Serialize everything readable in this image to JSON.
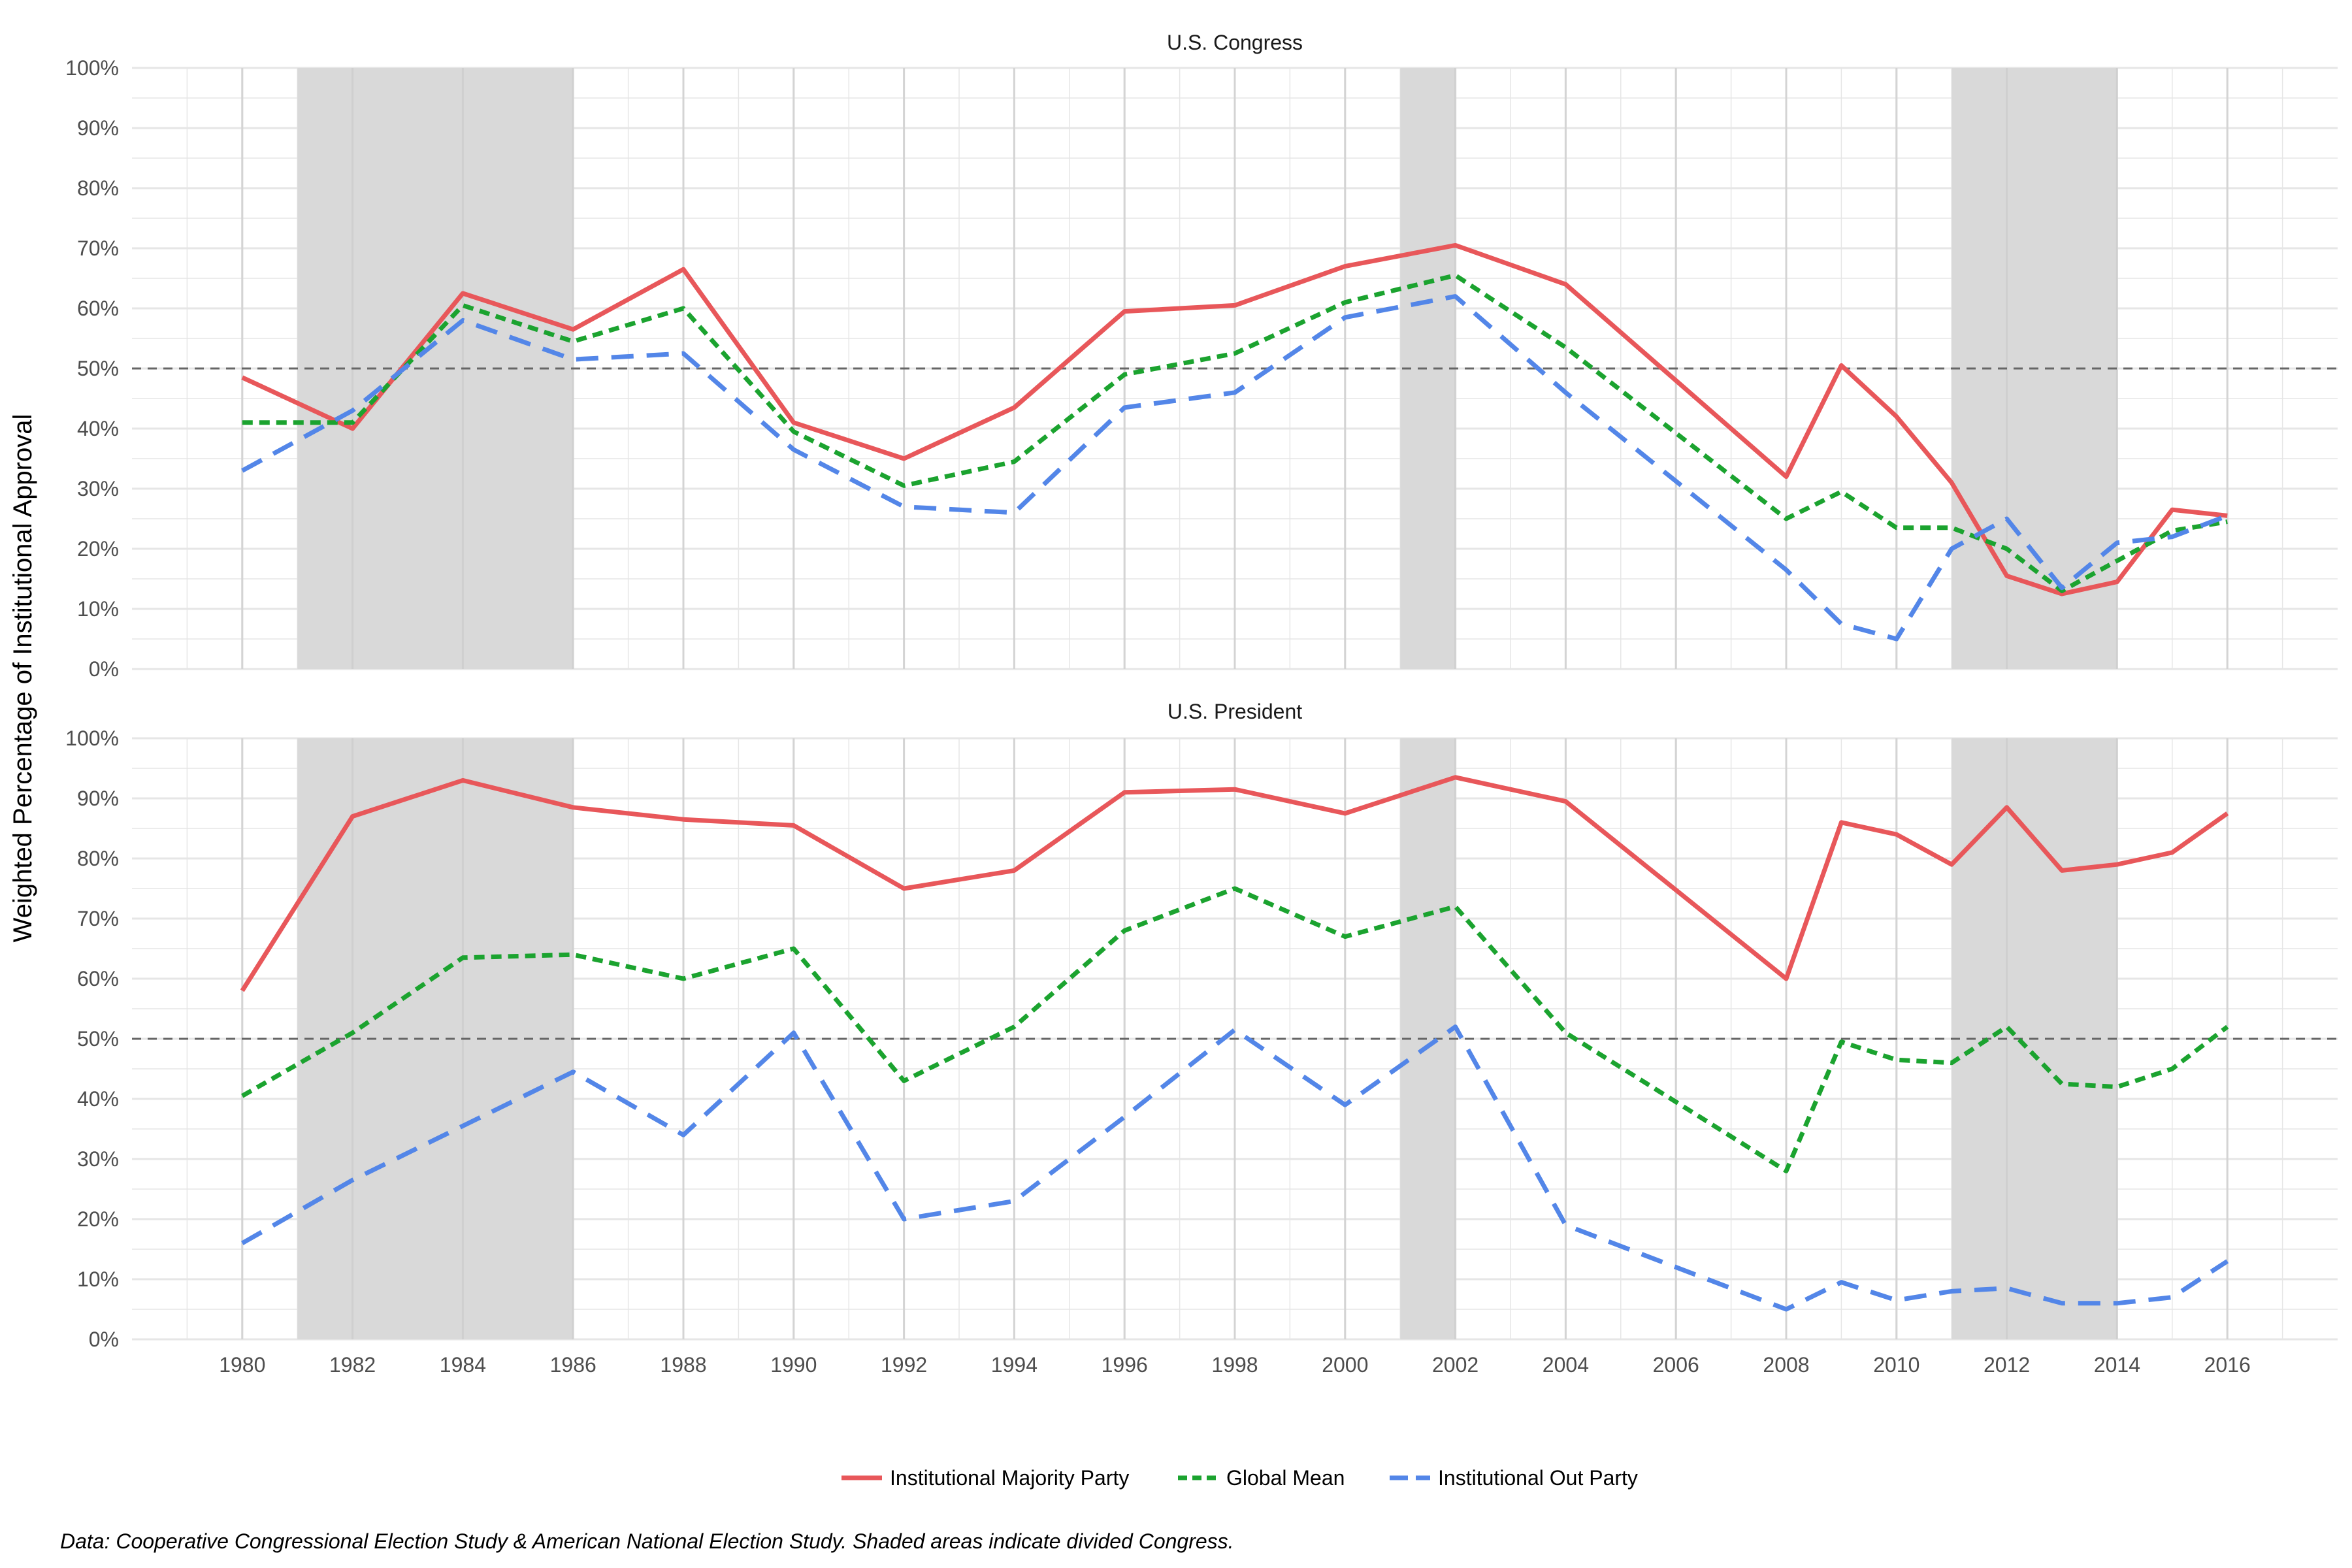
{
  "colors": {
    "majority": "#E8575A",
    "mean": "#1BA32F",
    "out": "#5386E8",
    "shade": "#d9d9d9",
    "grid": "#e6e6e6",
    "refline": "#666666"
  },
  "chart_data": {
    "type": "line",
    "ylabel": "Weighted Percentage of Institutional Approval",
    "caption": "Data: Cooperative Congressional Election Study & American National Election Study. Shaded areas indicate divided Congress.",
    "xlim": [
      1978,
      2018
    ],
    "ylim": [
      0,
      100
    ],
    "x_ticks": [
      1980,
      1982,
      1984,
      1986,
      1988,
      1990,
      1992,
      1994,
      1996,
      1998,
      2000,
      2002,
      2004,
      2006,
      2008,
      2010,
      2012,
      2014,
      2016
    ],
    "y_ticks": [
      0,
      10,
      20,
      30,
      40,
      50,
      60,
      70,
      80,
      90,
      100
    ],
    "y_tick_labels": [
      "0%",
      "10%",
      "20%",
      "30%",
      "40%",
      "50%",
      "60%",
      "70%",
      "80%",
      "90%",
      "100%"
    ],
    "reference_line": 50,
    "shaded_ranges": [
      [
        1981,
        1986
      ],
      [
        2001,
        2002
      ],
      [
        2011,
        2014
      ]
    ],
    "legend": {
      "position": "bottom",
      "entries": [
        {
          "key": "majority",
          "label": "Institutional Majority Party"
        },
        {
          "key": "mean",
          "label": "Global Mean"
        },
        {
          "key": "out",
          "label": "Institutional Out Party"
        }
      ]
    },
    "panels": [
      {
        "title": "U.S. Congress",
        "series": [
          {
            "key": "majority",
            "name": "Institutional Majority Party",
            "x": [
              1980,
              1982,
              1984,
              1986,
              1988,
              1990,
              1992,
              1994,
              1996,
              1998,
              2000,
              2002,
              2004,
              2008,
              2009,
              2010,
              2011,
              2012,
              2013,
              2014,
              2015,
              2016
            ],
            "y": [
              48.5,
              40,
              62.5,
              56.5,
              66.5,
              41,
              35,
              43.5,
              59.5,
              60.5,
              67,
              70.5,
              64,
              32,
              50.5,
              42,
              31,
              15.5,
              12.5,
              14.5,
              26.5,
              25.5
            ]
          },
          {
            "key": "mean",
            "name": "Global Mean",
            "x": [
              1980,
              1982,
              1984,
              1986,
              1988,
              1990,
              1992,
              1994,
              1996,
              1998,
              2000,
              2002,
              2004,
              2008,
              2009,
              2010,
              2011,
              2012,
              2013,
              2014,
              2015,
              2016
            ],
            "y": [
              41,
              41,
              60.5,
              54.5,
              60,
              39.5,
              30.5,
              34.5,
              49,
              52.5,
              61,
              65.5,
              53.5,
              25,
              29.5,
              23.5,
              23.5,
              20,
              13,
              18,
              23,
              24.5
            ]
          },
          {
            "key": "out",
            "name": "Institutional Out Party",
            "x": [
              1980,
              1982,
              1984,
              1986,
              1988,
              1990,
              1992,
              1994,
              1996,
              1998,
              2000,
              2002,
              2004,
              2008,
              2009,
              2010,
              2011,
              2012,
              2013,
              2014,
              2015,
              2016
            ],
            "y": [
              33,
              43,
              58,
              51.5,
              52.5,
              36.5,
              27,
              26,
              43.5,
              46,
              58.5,
              62,
              46,
              16.5,
              7.5,
              5,
              20,
              25,
              13.5,
              21,
              22,
              25.5
            ]
          }
        ]
      },
      {
        "title": "U.S. President",
        "series": [
          {
            "key": "majority",
            "name": "Institutional Majority Party",
            "x": [
              1980,
              1982,
              1984,
              1986,
              1988,
              1990,
              1992,
              1994,
              1996,
              1998,
              2000,
              2002,
              2004,
              2008,
              2009,
              2010,
              2011,
              2012,
              2013,
              2014,
              2015,
              2016
            ],
            "y": [
              58,
              87,
              93,
              88.5,
              86.5,
              85.5,
              75,
              78,
              91,
              91.5,
              87.5,
              93.5,
              89.5,
              60,
              86,
              84,
              79,
              88.5,
              78,
              79,
              81,
              87.5
            ]
          },
          {
            "key": "mean",
            "name": "Global Mean",
            "x": [
              1980,
              1982,
              1984,
              1986,
              1988,
              1990,
              1992,
              1994,
              1996,
              1998,
              2000,
              2002,
              2004,
              2008,
              2009,
              2010,
              2011,
              2012,
              2013,
              2014,
              2015,
              2016
            ],
            "y": [
              40.5,
              51,
              63.5,
              64,
              60,
              65,
              43,
              52,
              68,
              75,
              67,
              72,
              51,
              28,
              49.5,
              46.5,
              46,
              52,
              42.5,
              42,
              45,
              52
            ]
          },
          {
            "key": "out",
            "name": "Institutional Out Party",
            "x": [
              1980,
              1982,
              1984,
              1986,
              1988,
              1990,
              1992,
              1994,
              1996,
              1998,
              2000,
              2002,
              2004,
              2008,
              2009,
              2010,
              2011,
              2012,
              2013,
              2014,
              2015,
              2016
            ],
            "y": [
              16,
              26.5,
              35.5,
              44.5,
              34,
              51,
              20,
              23,
              37,
              51.5,
              39,
              52,
              19,
              5,
              9.5,
              6.5,
              8,
              8.5,
              6,
              6,
              7,
              13
            ]
          }
        ]
      }
    ]
  }
}
